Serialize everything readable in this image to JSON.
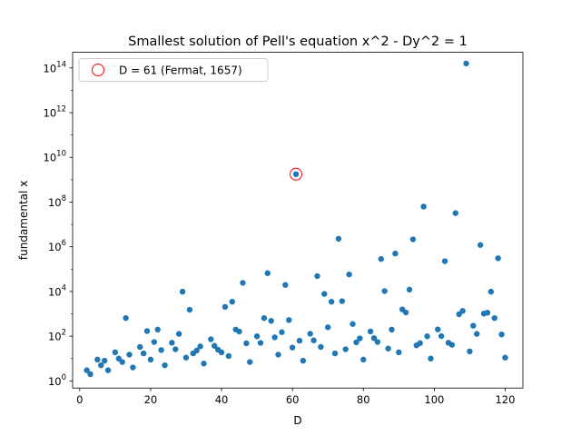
{
  "chart_data": {
    "type": "scatter",
    "title": "Smallest solution of Pell's equation x^2 - Dy^2 = 1",
    "xlabel": "D",
    "ylabel": "fundamental x",
    "xlim": [
      -2,
      125
    ],
    "ylim": [
      0.48,
      500000000000000
    ],
    "yscale": "log",
    "xticks": [
      0,
      20,
      40,
      60,
      80,
      100,
      120
    ],
    "yticks": [
      {
        "value": 1,
        "label_base": "10",
        "label_exp": "0"
      },
      {
        "value": 100,
        "label_base": "10",
        "label_exp": "2"
      },
      {
        "value": 10000,
        "label_base": "10",
        "label_exp": "4"
      },
      {
        "value": 1000000,
        "label_base": "10",
        "label_exp": "6"
      },
      {
        "value": 100000000,
        "label_base": "10",
        "label_exp": "8"
      },
      {
        "value": 10000000000,
        "label_base": "10",
        "label_exp": "10"
      },
      {
        "value": 1000000000000,
        "label_base": "10",
        "label_exp": "12"
      },
      {
        "value": 100000000000000,
        "label_base": "10",
        "label_exp": "14"
      }
    ],
    "grid": false,
    "point_color": "#1f77b4",
    "highlight_color": "#ff0000",
    "legend": {
      "placement": "upper-left",
      "entries": [
        {
          "label": "D = 61 (Fermat, 1657)",
          "marker": "open-circle"
        }
      ]
    },
    "highlight_point": {
      "x": 61,
      "y": 1766319049
    },
    "series": [
      {
        "points": [
          [
            2,
            3
          ],
          [
            3,
            2
          ],
          [
            5,
            9
          ],
          [
            6,
            5
          ],
          [
            7,
            8
          ],
          [
            8,
            3
          ],
          [
            10,
            19
          ],
          [
            11,
            10
          ],
          [
            12,
            7
          ],
          [
            13,
            649
          ],
          [
            14,
            15
          ],
          [
            15,
            4
          ],
          [
            17,
            33
          ],
          [
            18,
            17
          ],
          [
            19,
            170
          ],
          [
            20,
            9
          ],
          [
            21,
            55
          ],
          [
            22,
            197
          ],
          [
            23,
            24
          ],
          [
            24,
            5
          ],
          [
            26,
            51
          ],
          [
            27,
            26
          ],
          [
            28,
            127
          ],
          [
            29,
            9801
          ],
          [
            30,
            11
          ],
          [
            31,
            1520
          ],
          [
            32,
            17
          ],
          [
            33,
            23
          ],
          [
            34,
            35
          ],
          [
            35,
            6
          ],
          [
            37,
            73
          ],
          [
            38,
            37
          ],
          [
            39,
            25
          ],
          [
            40,
            19
          ],
          [
            41,
            2049
          ],
          [
            42,
            13
          ],
          [
            43,
            3482
          ],
          [
            44,
            199
          ],
          [
            45,
            161
          ],
          [
            46,
            24335
          ],
          [
            47,
            48
          ],
          [
            48,
            7
          ],
          [
            50,
            99
          ],
          [
            51,
            50
          ],
          [
            52,
            649
          ],
          [
            53,
            66249
          ],
          [
            54,
            485
          ],
          [
            55,
            89
          ],
          [
            56,
            15
          ],
          [
            57,
            151
          ],
          [
            58,
            19603
          ],
          [
            59,
            530
          ],
          [
            60,
            31
          ],
          [
            61,
            1766319049
          ],
          [
            62,
            63
          ],
          [
            63,
            8
          ],
          [
            65,
            129
          ],
          [
            66,
            65
          ],
          [
            67,
            48842
          ],
          [
            68,
            33
          ],
          [
            69,
            7775
          ],
          [
            70,
            251
          ],
          [
            71,
            3480
          ],
          [
            72,
            17
          ],
          [
            73,
            2281249
          ],
          [
            74,
            3699
          ],
          [
            75,
            26
          ],
          [
            76,
            57799
          ],
          [
            77,
            351
          ],
          [
            78,
            53
          ],
          [
            79,
            80
          ],
          [
            80,
            9
          ],
          [
            82,
            163
          ],
          [
            83,
            82
          ],
          [
            84,
            55
          ],
          [
            85,
            285769
          ],
          [
            86,
            10405
          ],
          [
            87,
            28
          ],
          [
            88,
            197
          ],
          [
            89,
            500001
          ],
          [
            90,
            19
          ],
          [
            91,
            1574
          ],
          [
            92,
            1151
          ],
          [
            93,
            12151
          ],
          [
            94,
            2143295
          ],
          [
            95,
            39
          ],
          [
            96,
            49
          ],
          [
            97,
            62809633
          ],
          [
            98,
            99
          ],
          [
            99,
            10
          ],
          [
            101,
            201
          ],
          [
            102,
            101
          ],
          [
            103,
            227528
          ],
          [
            104,
            51
          ],
          [
            105,
            41
          ],
          [
            106,
            32080051
          ],
          [
            107,
            962
          ],
          [
            108,
            1351
          ],
          [
            109,
            158070671986249
          ],
          [
            110,
            21
          ],
          [
            111,
            295
          ],
          [
            112,
            127
          ],
          [
            113,
            1204353
          ],
          [
            114,
            1025
          ],
          [
            115,
            1126
          ],
          [
            116,
            9801
          ],
          [
            117,
            649
          ],
          [
            118,
            306917
          ],
          [
            119,
            120
          ],
          [
            120,
            11
          ]
        ]
      }
    ]
  }
}
